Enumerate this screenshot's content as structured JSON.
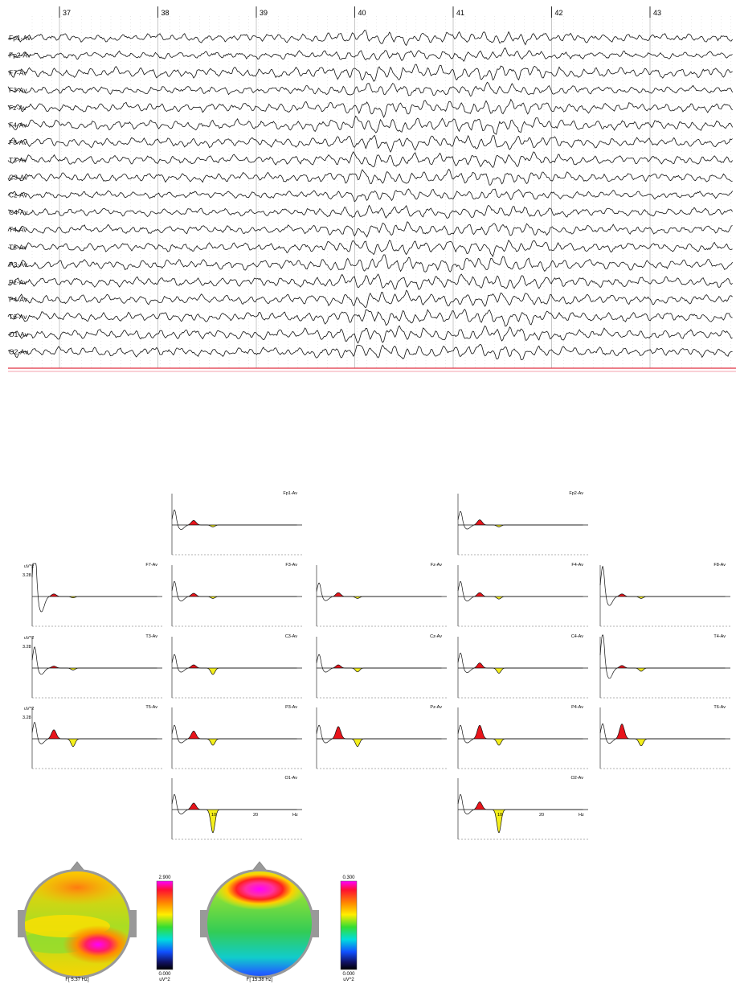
{
  "eeg": {
    "seconds": [
      "37",
      "38",
      "39",
      "40",
      "41",
      "42",
      "43"
    ],
    "channels": [
      "Fp1-Av",
      "Fp2-Av",
      "F7-Av",
      "F3-Av",
      "Fz-Av",
      "F4-Av",
      "F8-Av",
      "T3-Av",
      "C3-Av",
      "Cz-Av",
      "C4-Av",
      "T4-Av",
      "T5-Av",
      "P3-Av",
      "Pz-Av",
      "P4-Av",
      "T6-Av",
      "O1-Av",
      "O2-Av"
    ]
  },
  "spectra": {
    "y_unit": "uV^2",
    "y_tick": "3.28",
    "x_unit": "Hz",
    "x_ticks": [
      "10",
      "20"
    ],
    "panels": [
      {
        "label": "Fp1-Av",
        "red": 0.7,
        "yellow": 0.3,
        "delta": 1.0,
        "o": 0
      },
      {
        "label": "Fp2-Av",
        "red": 0.8,
        "yellow": 0.3,
        "delta": 0.9,
        "o": 0
      },
      {
        "label": "F7-Av",
        "red": 0.4,
        "yellow": 0.2,
        "delta": 3.4,
        "o": 0
      },
      {
        "label": "F3-Av",
        "red": 0.5,
        "yellow": 0.3,
        "delta": 1.0,
        "o": 0
      },
      {
        "label": "Fz-Av",
        "red": 0.6,
        "yellow": 0.3,
        "delta": 0.9,
        "o": 0
      },
      {
        "label": "F4-Av",
        "red": 0.6,
        "yellow": 0.4,
        "delta": 1.0,
        "o": 0
      },
      {
        "label": "F8-Av",
        "red": 0.4,
        "yellow": 0.3,
        "delta": 2.0,
        "o": 0
      },
      {
        "label": "T3-Av",
        "red": 0.3,
        "yellow": 0.3,
        "delta": 1.4,
        "o": 0
      },
      {
        "label": "C3-Av",
        "red": 0.5,
        "yellow": 1.0,
        "delta": 0.9,
        "o": 0
      },
      {
        "label": "Cz-Av",
        "red": 0.5,
        "yellow": 0.6,
        "delta": 0.9,
        "o": 0
      },
      {
        "label": "C4-Av",
        "red": 0.8,
        "yellow": 0.8,
        "delta": 1.0,
        "o": 0
      },
      {
        "label": "T4-Av",
        "red": 0.4,
        "yellow": 0.5,
        "delta": 2.3,
        "o": 0
      },
      {
        "label": "T5-Av",
        "red": 1.4,
        "yellow": 1.2,
        "delta": 1.1,
        "o": 0
      },
      {
        "label": "P3-Av",
        "red": 1.2,
        "yellow": 1.0,
        "delta": 0.9,
        "o": 0
      },
      {
        "label": "Pz-Av",
        "red": 1.9,
        "yellow": 1.2,
        "delta": 0.9,
        "o": 0
      },
      {
        "label": "P4-Av",
        "red": 2.1,
        "yellow": 1.0,
        "delta": 0.9,
        "o": 0
      },
      {
        "label": "T6-Av",
        "red": 2.3,
        "yellow": 1.1,
        "delta": 1.0,
        "o": 0
      },
      {
        "label": "O1-Av",
        "red": 1.0,
        "yellow": 3.6,
        "delta": 1.0,
        "o": 1
      },
      {
        "label": "O2-Av",
        "red": 1.2,
        "yellow": 3.6,
        "delta": 1.0,
        "o": 1
      }
    ]
  },
  "topomaps": [
    {
      "scale_max": "2.900",
      "scale_min": "0.000",
      "unit": "uV^2",
      "freq_label": "F[ 5.37 Hz]"
    },
    {
      "scale_max": "0.300",
      "scale_min": "0.000",
      "unit": "uV^2",
      "freq_label": "F[ 15.38 Hz]"
    }
  ],
  "colors": {
    "red": "#e8141b",
    "yellow": "#f4ef1c",
    "trace": "#111111",
    "baseline": "#e03040"
  },
  "chart_data": [
    {
      "type": "line",
      "x": [
        37,
        38,
        39,
        40,
        41,
        42,
        43
      ],
      "series": [
        {
          "name": "Fp1-Av"
        },
        {
          "name": "Fp2-Av"
        },
        {
          "name": "F7-Av"
        },
        {
          "name": "F3-Av"
        },
        {
          "name": "Fz-Av"
        },
        {
          "name": "F4-Av"
        },
        {
          "name": "F8-Av"
        },
        {
          "name": "T3-Av"
        },
        {
          "name": "C3-Av"
        },
        {
          "name": "Cz-Av"
        },
        {
          "name": "C4-Av"
        },
        {
          "name": "T4-Av"
        },
        {
          "name": "T5-Av"
        },
        {
          "name": "P3-Av"
        },
        {
          "name": "Pz-Av"
        },
        {
          "name": "P4-Av"
        },
        {
          "name": "T6-Av"
        },
        {
          "name": "O1-Av"
        },
        {
          "name": "O2-Av"
        }
      ]
    },
    {
      "type": "area",
      "xlabel": "Hz",
      "ylabel": "uV^2",
      "x_ticks": [
        10,
        20
      ],
      "y_ticks": [
        3.28
      ]
    },
    {
      "type": "heatmap",
      "maps": [
        {
          "label": "F[ 5.37 Hz]",
          "range": [
            0.0,
            2.9
          ],
          "unit": "uV^2"
        },
        {
          "label": "F[ 15.38 Hz]",
          "range": [
            0.0,
            0.3
          ],
          "unit": "uV^2"
        }
      ]
    }
  ]
}
